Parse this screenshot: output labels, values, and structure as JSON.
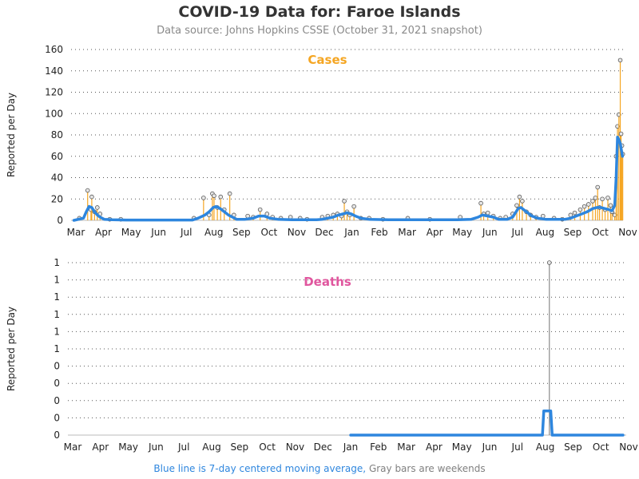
{
  "title": "COVID-19 Data for: Faroe Islands",
  "subtitle": "Data source: Johns Hopkins CSSE (October 31, 2021 snapshot)",
  "footer": {
    "blue_text": "Blue line is 7-day centered moving average,",
    "gray_text": "Gray bars are weekends"
  },
  "colors": {
    "cases": "#f5a623",
    "deaths": "#e0569e",
    "average": "#2e86de",
    "weekend_bar": "#888888",
    "grid": "#555555",
    "marker_fill": "#e6e6e6"
  },
  "chart_data": [
    {
      "type": "bar",
      "panel_title": "Cases",
      "ylabel": "Reported per Day",
      "x_tick_labels": [
        "Mar",
        "Apr",
        "May",
        "Jun",
        "Jul",
        "Aug",
        "Sep",
        "Oct",
        "Nov",
        "Dec",
        "Jan",
        "Feb",
        "Mar",
        "Apr",
        "May",
        "Jun",
        "Jul",
        "Aug",
        "Sep",
        "Oct",
        "Nov"
      ],
      "y_tick_labels": [
        "0",
        "20",
        "40",
        "60",
        "80",
        "100",
        "120",
        "140",
        "160"
      ],
      "ylim": [
        0,
        160
      ],
      "grid": "horizontal dotted",
      "spikes": [
        {
          "month": 0.3,
          "value": 2
        },
        {
          "month": 0.6,
          "value": 28
        },
        {
          "month": 0.72,
          "value": 10
        },
        {
          "month": 0.75,
          "value": 22
        },
        {
          "month": 0.85,
          "value": 8
        },
        {
          "month": 0.95,
          "value": 12
        },
        {
          "month": 1.05,
          "value": 6
        },
        {
          "month": 1.4,
          "value": 1
        },
        {
          "month": 1.8,
          "value": 1
        },
        {
          "month": 4.45,
          "value": 2
        },
        {
          "month": 4.8,
          "value": 21
        },
        {
          "month": 5.0,
          "value": 5
        },
        {
          "month": 5.12,
          "value": 25
        },
        {
          "month": 5.18,
          "value": 23
        },
        {
          "month": 5.3,
          "value": 12
        },
        {
          "month": 5.42,
          "value": 22
        },
        {
          "month": 5.55,
          "value": 10
        },
        {
          "month": 5.75,
          "value": 25
        },
        {
          "month": 5.9,
          "value": 5
        },
        {
          "month": 6.4,
          "value": 4
        },
        {
          "month": 6.6,
          "value": 3
        },
        {
          "month": 6.85,
          "value": 10
        },
        {
          "month": 7.1,
          "value": 6
        },
        {
          "month": 7.3,
          "value": 3
        },
        {
          "month": 7.6,
          "value": 2
        },
        {
          "month": 7.95,
          "value": 3
        },
        {
          "month": 8.3,
          "value": 2
        },
        {
          "month": 8.55,
          "value": 1
        },
        {
          "month": 9.1,
          "value": 3
        },
        {
          "month": 9.3,
          "value": 4
        },
        {
          "month": 9.5,
          "value": 5
        },
        {
          "month": 9.65,
          "value": 6
        },
        {
          "month": 9.8,
          "value": 4
        },
        {
          "month": 9.9,
          "value": 18
        },
        {
          "month": 10.0,
          "value": 8
        },
        {
          "month": 10.1,
          "value": 5
        },
        {
          "month": 10.25,
          "value": 13
        },
        {
          "month": 10.5,
          "value": 2
        },
        {
          "month": 10.8,
          "value": 2
        },
        {
          "month": 11.3,
          "value": 1
        },
        {
          "month": 12.2,
          "value": 2
        },
        {
          "month": 13.0,
          "value": 1
        },
        {
          "month": 14.1,
          "value": 3
        },
        {
          "month": 14.85,
          "value": 16
        },
        {
          "month": 14.95,
          "value": 6
        },
        {
          "month": 15.1,
          "value": 7
        },
        {
          "month": 15.3,
          "value": 4
        },
        {
          "month": 15.55,
          "value": 2
        },
        {
          "month": 15.75,
          "value": 3
        },
        {
          "month": 16.0,
          "value": 6
        },
        {
          "month": 16.15,
          "value": 14
        },
        {
          "month": 16.25,
          "value": 22
        },
        {
          "month": 16.35,
          "value": 18
        },
        {
          "month": 16.5,
          "value": 8
        },
        {
          "month": 16.65,
          "value": 5
        },
        {
          "month": 16.85,
          "value": 3
        },
        {
          "month": 17.1,
          "value": 4
        },
        {
          "month": 17.5,
          "value": 2
        },
        {
          "month": 17.8,
          "value": 1
        },
        {
          "month": 18.1,
          "value": 5
        },
        {
          "month": 18.25,
          "value": 7
        },
        {
          "month": 18.45,
          "value": 10
        },
        {
          "month": 18.6,
          "value": 13
        },
        {
          "month": 18.75,
          "value": 15
        },
        {
          "month": 18.9,
          "value": 18
        },
        {
          "month": 19.0,
          "value": 21
        },
        {
          "month": 19.08,
          "value": 31
        },
        {
          "month": 19.15,
          "value": 12
        },
        {
          "month": 19.25,
          "value": 20
        },
        {
          "month": 19.35,
          "value": 10
        },
        {
          "month": 19.45,
          "value": 21
        },
        {
          "month": 19.55,
          "value": 14
        },
        {
          "month": 19.6,
          "value": 8
        },
        {
          "month": 19.7,
          "value": 5
        },
        {
          "month": 19.75,
          "value": 60
        },
        {
          "month": 19.8,
          "value": 88
        },
        {
          "month": 19.85,
          "value": 99
        },
        {
          "month": 19.9,
          "value": 150
        },
        {
          "month": 19.93,
          "value": 81
        },
        {
          "month": 19.96,
          "value": 70
        },
        {
          "month": 19.99,
          "value": 62
        }
      ],
      "average": [
        [
          0.1,
          0
        ],
        [
          0.45,
          2
        ],
        [
          0.55,
          8
        ],
        [
          0.65,
          13
        ],
        [
          0.75,
          12
        ],
        [
          0.85,
          8
        ],
        [
          0.95,
          5
        ],
        [
          1.05,
          3
        ],
        [
          1.2,
          1
        ],
        [
          1.5,
          0.5
        ],
        [
          2.0,
          0.3
        ],
        [
          4.4,
          0.3
        ],
        [
          4.6,
          2
        ],
        [
          4.85,
          5
        ],
        [
          5.0,
          8
        ],
        [
          5.15,
          12
        ],
        [
          5.25,
          13
        ],
        [
          5.4,
          11
        ],
        [
          5.55,
          8
        ],
        [
          5.7,
          5
        ],
        [
          5.85,
          3
        ],
        [
          6.0,
          1
        ],
        [
          6.3,
          1
        ],
        [
          6.6,
          2
        ],
        [
          6.8,
          4
        ],
        [
          7.0,
          4
        ],
        [
          7.2,
          2
        ],
        [
          7.5,
          1
        ],
        [
          8.0,
          0.5
        ],
        [
          8.9,
          0.5
        ],
        [
          9.1,
          1
        ],
        [
          9.3,
          2
        ],
        [
          9.5,
          3
        ],
        [
          9.7,
          5
        ],
        [
          9.85,
          6
        ],
        [
          10.0,
          7
        ],
        [
          10.15,
          6
        ],
        [
          10.3,
          4
        ],
        [
          10.5,
          2
        ],
        [
          10.8,
          1
        ],
        [
          11.5,
          0.5
        ],
        [
          14.0,
          0.5
        ],
        [
          14.5,
          1
        ],
        [
          14.75,
          3
        ],
        [
          14.9,
          5
        ],
        [
          15.1,
          4
        ],
        [
          15.3,
          3
        ],
        [
          15.5,
          1
        ],
        [
          15.8,
          1
        ],
        [
          16.0,
          3
        ],
        [
          16.1,
          7
        ],
        [
          16.2,
          11
        ],
        [
          16.3,
          12
        ],
        [
          16.4,
          10
        ],
        [
          16.55,
          7
        ],
        [
          16.7,
          4
        ],
        [
          16.9,
          2
        ],
        [
          17.2,
          1
        ],
        [
          17.6,
          1
        ],
        [
          17.9,
          1
        ],
        [
          18.1,
          2
        ],
        [
          18.3,
          4
        ],
        [
          18.5,
          6
        ],
        [
          18.7,
          8
        ],
        [
          18.9,
          11
        ],
        [
          19.05,
          12
        ],
        [
          19.2,
          12
        ],
        [
          19.35,
          11
        ],
        [
          19.5,
          10
        ],
        [
          19.6,
          9
        ],
        [
          19.7,
          14
        ],
        [
          19.75,
          40
        ],
        [
          19.8,
          78
        ],
        [
          19.86,
          75
        ],
        [
          19.9,
          72
        ],
        [
          19.98,
          60
        ]
      ]
    },
    {
      "type": "bar",
      "panel_title": "Deaths",
      "ylabel": "Reported per Day",
      "x_tick_labels": [
        "Mar",
        "Apr",
        "May",
        "Jun",
        "Jul",
        "Aug",
        "Sep",
        "Oct",
        "Nov",
        "Dec",
        "Jan",
        "Feb",
        "Mar",
        "Apr",
        "May",
        "Jun",
        "Jul",
        "Aug",
        "Sep",
        "Oct",
        "Nov"
      ],
      "y_tick_labels": [
        "0",
        "0",
        "0",
        "0",
        "0",
        "1",
        "1",
        "1",
        "1",
        "1",
        "1"
      ],
      "ylim": [
        0,
        1
      ],
      "grid": "horizontal dotted",
      "spikes": [
        {
          "month": 17.35,
          "value": 1
        }
      ],
      "average": [
        [
          10.2,
          0
        ],
        [
          17.1,
          0
        ],
        [
          17.15,
          0.14
        ],
        [
          17.4,
          0.14
        ],
        [
          17.45,
          0
        ],
        [
          20.0,
          0
        ]
      ]
    }
  ]
}
